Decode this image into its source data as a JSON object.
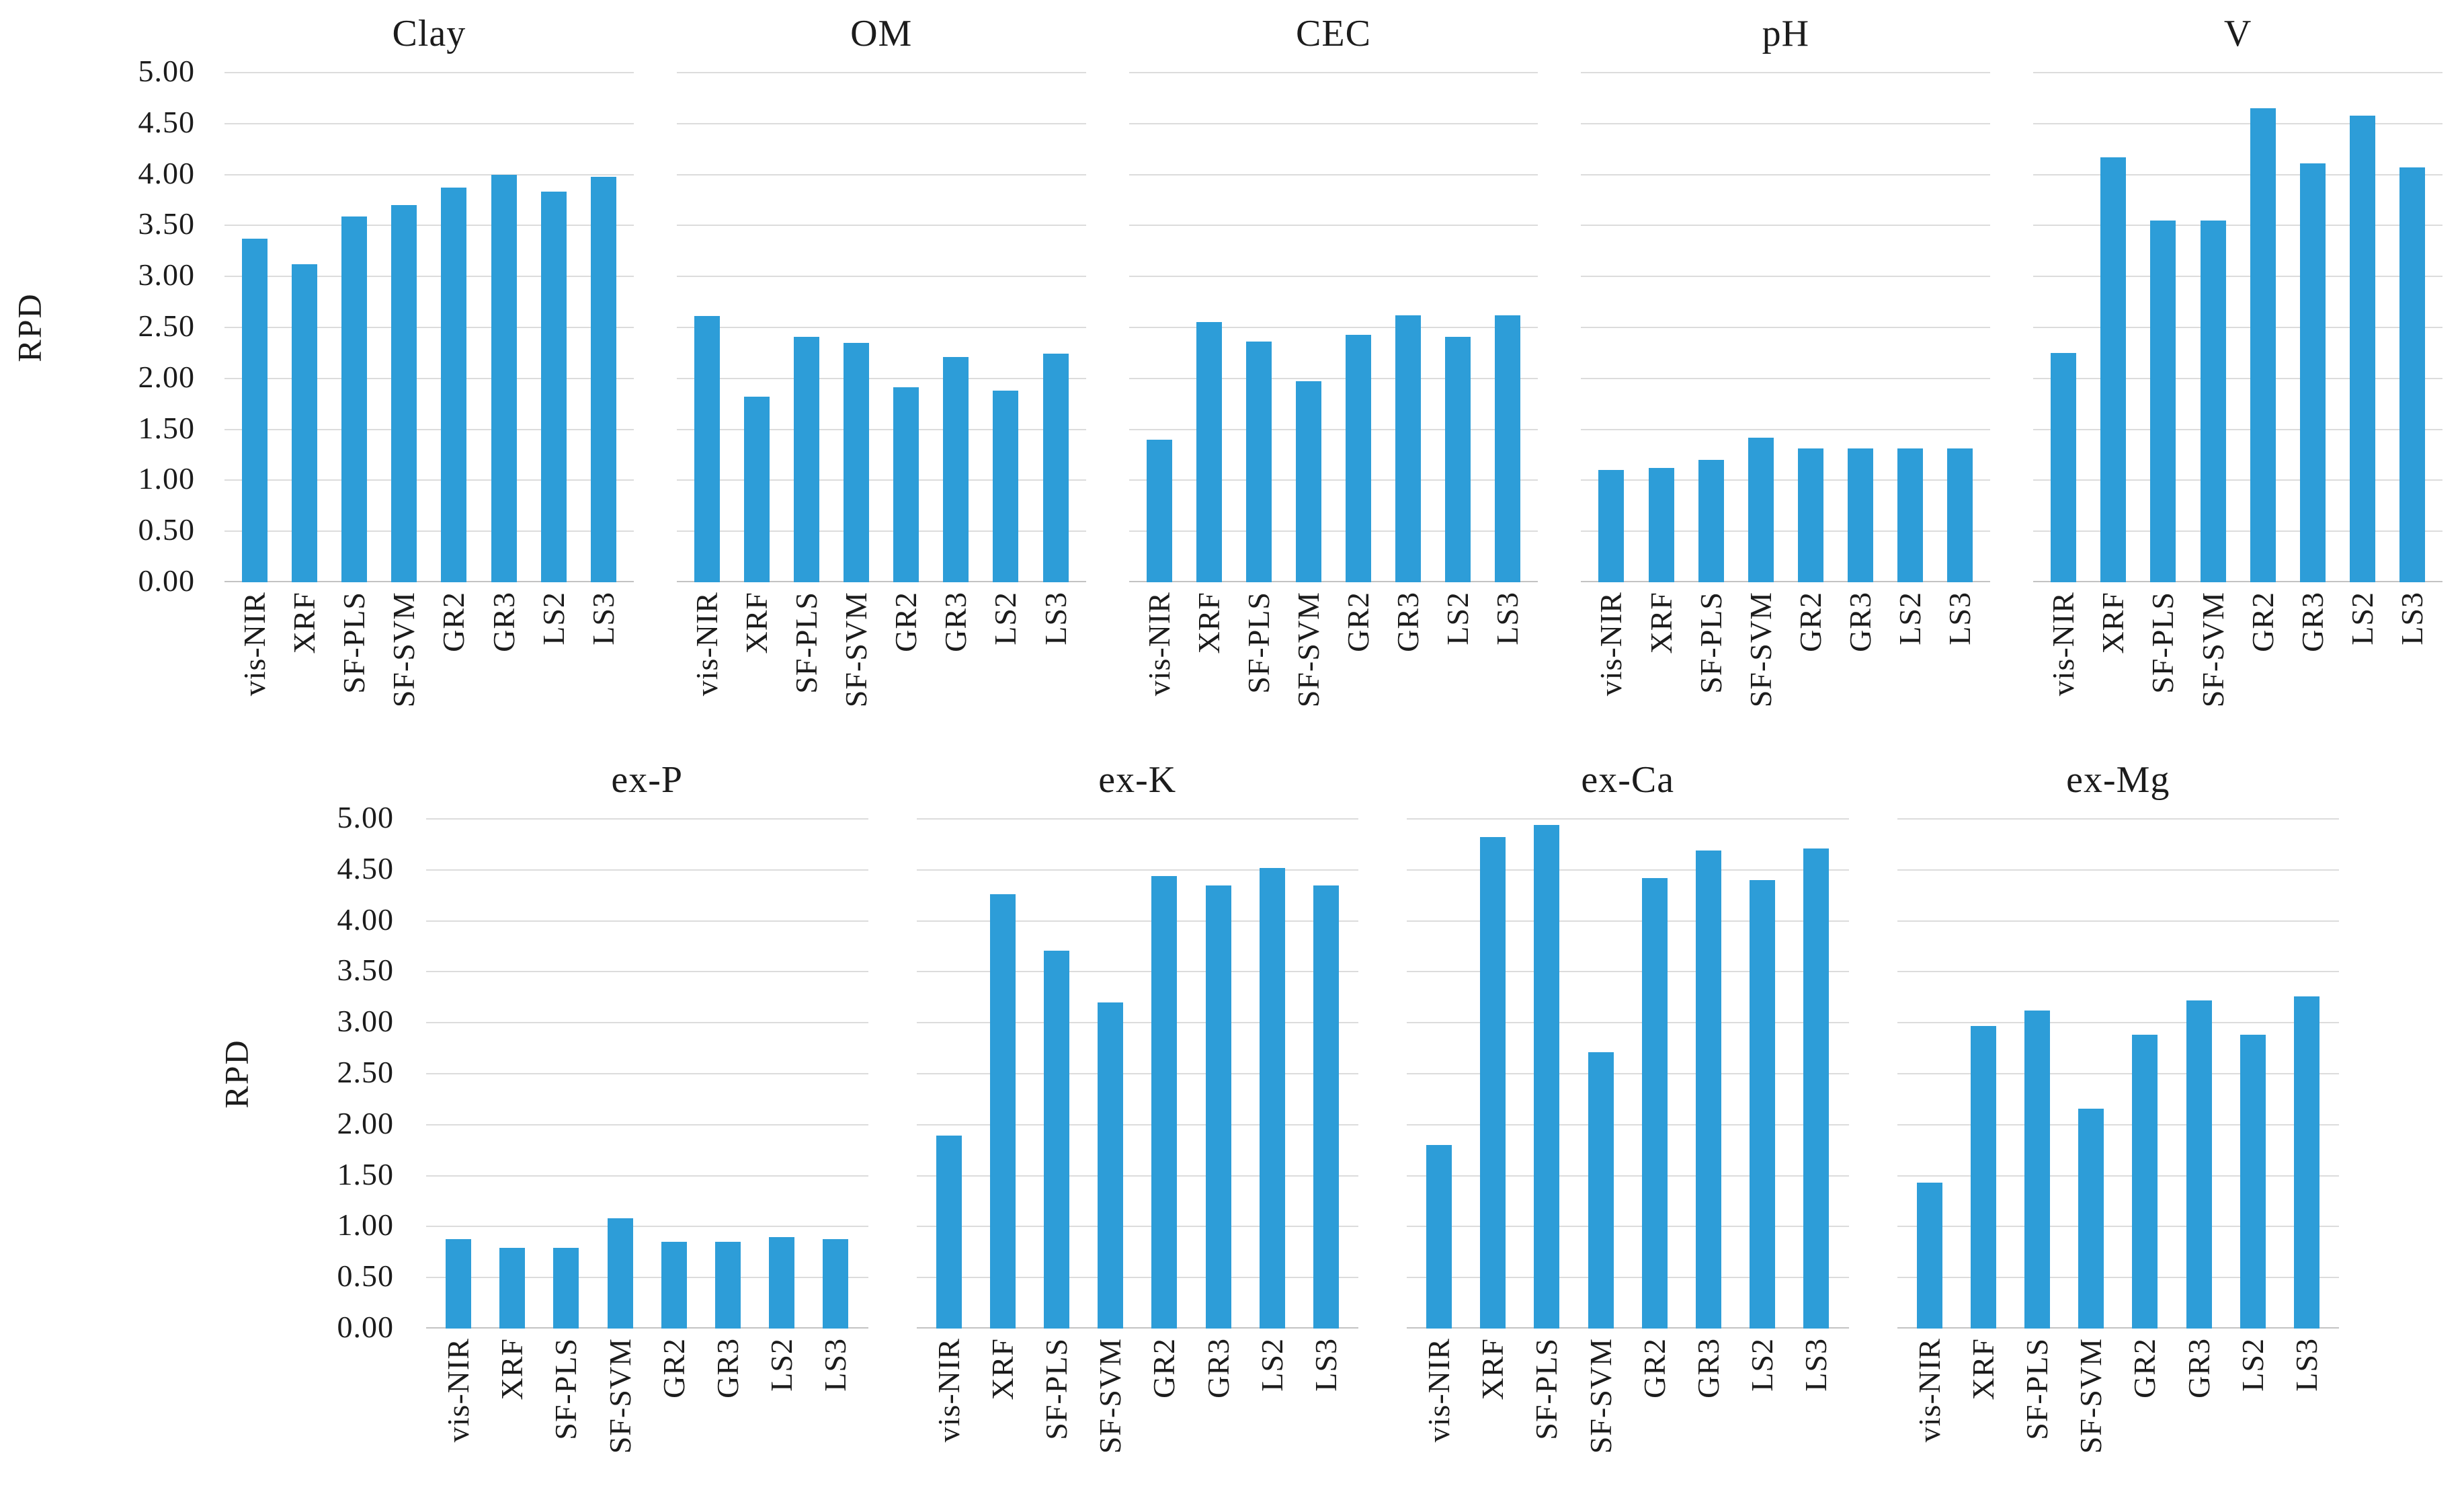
{
  "figure": {
    "y_axis_label": "RPD",
    "y_ticks": [
      "5.00",
      "4.50",
      "4.00",
      "3.50",
      "3.00",
      "2.50",
      "2.00",
      "1.50",
      "1.00",
      "0.50",
      "0.00"
    ],
    "ylim": [
      0,
      5
    ],
    "bar_color": "#2d9dd8",
    "gridline_color": "#dcdcdc",
    "rows": [
      {
        "panel_titles": [
          "Clay",
          "OM",
          "CEC",
          "pH",
          "V"
        ]
      },
      {
        "panel_titles": [
          "ex-P",
          "ex-K",
          "ex-Ca",
          "ex-Mg"
        ]
      }
    ]
  },
  "chart_data": [
    {
      "type": "bar",
      "title": "Clay",
      "ylabel": "RPD",
      "ylim": [
        0,
        5
      ],
      "categories": [
        "vis-NIR",
        "XRF",
        "SF-PLS",
        "SF-SVM",
        "GR2",
        "GR3",
        "LS2",
        "LS3"
      ],
      "values": [
        3.37,
        3.12,
        3.59,
        3.7,
        3.87,
        4.0,
        3.83,
        3.98
      ]
    },
    {
      "type": "bar",
      "title": "OM",
      "ylabel": "RPD",
      "ylim": [
        0,
        5
      ],
      "categories": [
        "vis-NIR",
        "XRF",
        "SF-PLS",
        "SF-SVM",
        "GR2",
        "GR3",
        "LS2",
        "LS3"
      ],
      "values": [
        2.61,
        1.82,
        2.41,
        2.35,
        1.91,
        2.21,
        1.88,
        2.24
      ]
    },
    {
      "type": "bar",
      "title": "CEC",
      "ylabel": "RPD",
      "ylim": [
        0,
        5
      ],
      "categories": [
        "vis-NIR",
        "XRF",
        "SF-PLS",
        "SF-SVM",
        "GR2",
        "GR3",
        "LS2",
        "LS3"
      ],
      "values": [
        1.4,
        2.55,
        2.36,
        1.97,
        2.43,
        2.62,
        2.41,
        2.62
      ]
    },
    {
      "type": "bar",
      "title": "pH",
      "ylabel": "RPD",
      "ylim": [
        0,
        5
      ],
      "categories": [
        "vis-NIR",
        "XRF",
        "SF-PLS",
        "SF-SVM",
        "GR2",
        "GR3",
        "LS2",
        "LS3"
      ],
      "values": [
        1.1,
        1.12,
        1.2,
        1.42,
        1.31,
        1.31,
        1.31,
        1.31
      ]
    },
    {
      "type": "bar",
      "title": "V",
      "ylabel": "RPD",
      "ylim": [
        0,
        5
      ],
      "categories": [
        "vis-NIR",
        "XRF",
        "SF-PLS",
        "SF-SVM",
        "GR2",
        "GR3",
        "LS2",
        "LS3"
      ],
      "values": [
        2.25,
        4.17,
        3.55,
        3.55,
        4.65,
        4.11,
        4.58,
        4.07
      ]
    },
    {
      "type": "bar",
      "title": "ex-P",
      "ylabel": "RPD",
      "ylim": [
        0,
        5
      ],
      "categories": [
        "vis-NIR",
        "XRF",
        "SF-PLS",
        "SF-SVM",
        "GR2",
        "GR3",
        "LS2",
        "LS3"
      ],
      "values": [
        0.88,
        0.79,
        0.79,
        1.08,
        0.85,
        0.85,
        0.9,
        0.88
      ]
    },
    {
      "type": "bar",
      "title": "ex-K",
      "ylabel": "RPD",
      "ylim": [
        0,
        5
      ],
      "categories": [
        "vis-NIR",
        "XRF",
        "SF-PLS",
        "SF-SVM",
        "GR2",
        "GR3",
        "LS2",
        "LS3"
      ],
      "values": [
        1.89,
        4.26,
        3.71,
        3.2,
        4.44,
        4.35,
        4.52,
        4.35
      ]
    },
    {
      "type": "bar",
      "title": "ex-Ca",
      "ylabel": "RPD",
      "ylim": [
        0,
        5
      ],
      "categories": [
        "vis-NIR",
        "XRF",
        "SF-PLS",
        "SF-SVM",
        "GR2",
        "GR3",
        "LS2",
        "LS3"
      ],
      "values": [
        1.8,
        4.82,
        4.94,
        2.71,
        4.42,
        4.69,
        4.4,
        4.71
      ]
    },
    {
      "type": "bar",
      "title": "ex-Mg",
      "ylabel": "RPD",
      "ylim": [
        0,
        5
      ],
      "categories": [
        "vis-NIR",
        "XRF",
        "SF-PLS",
        "SF-SVM",
        "GR2",
        "GR3",
        "LS2",
        "LS3"
      ],
      "values": [
        1.43,
        2.97,
        3.12,
        2.16,
        2.88,
        3.22,
        2.88,
        3.26
      ]
    }
  ]
}
